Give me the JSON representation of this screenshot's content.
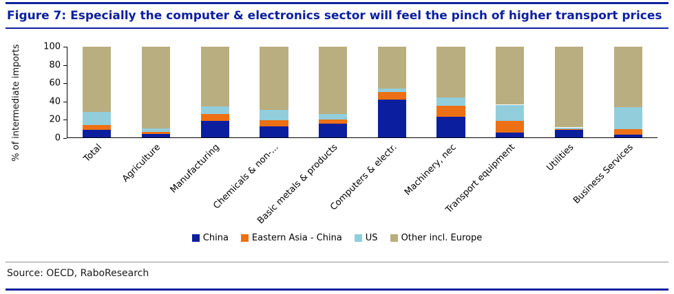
{
  "title": "Figure 7: Especially the computer & electronics sector will feel the pinch of higher transport prices",
  "source": "Source: OECD, RaboResearch",
  "accent_color": "#0b1f9e",
  "chart_data": {
    "type": "bar",
    "stacked": true,
    "percent_stacked": true,
    "title": "Figure 7: Especially the computer & electronics sector will feel the pinch of higher transport prices",
    "xlabel": "",
    "ylabel": "% of intermediate imports",
    "ylim": [
      0,
      100
    ],
    "yticks": [
      0,
      20,
      40,
      60,
      80,
      100
    ],
    "grid": false,
    "legend_position": "bottom",
    "categories": [
      "Total",
      "Agriculture",
      "Manufacturing",
      "Chemicals & non-...",
      "Basic metals & products",
      "Computers & electr.",
      "Machinery, nec",
      "Transport equipment",
      "Utilities",
      "Business Services"
    ],
    "series": [
      {
        "name": "China",
        "color": "#0b1e9e",
        "values": [
          8,
          4,
          18,
          12,
          15,
          42,
          23,
          5,
          8,
          3
        ]
      },
      {
        "name": "Eastern Asia - China",
        "color": "#ed7014",
        "values": [
          6,
          2,
          8,
          7,
          5,
          8,
          12,
          13,
          1,
          6
        ]
      },
      {
        "name": "US",
        "color": "#92cddc",
        "values": [
          14,
          4,
          8,
          11,
          6,
          4,
          9,
          18,
          2,
          24
        ]
      },
      {
        "name": "Other incl. Europe",
        "color": "#b9ae80",
        "values": [
          72,
          90,
          66,
          70,
          74,
          46,
          56,
          64,
          89,
          67
        ]
      }
    ]
  }
}
